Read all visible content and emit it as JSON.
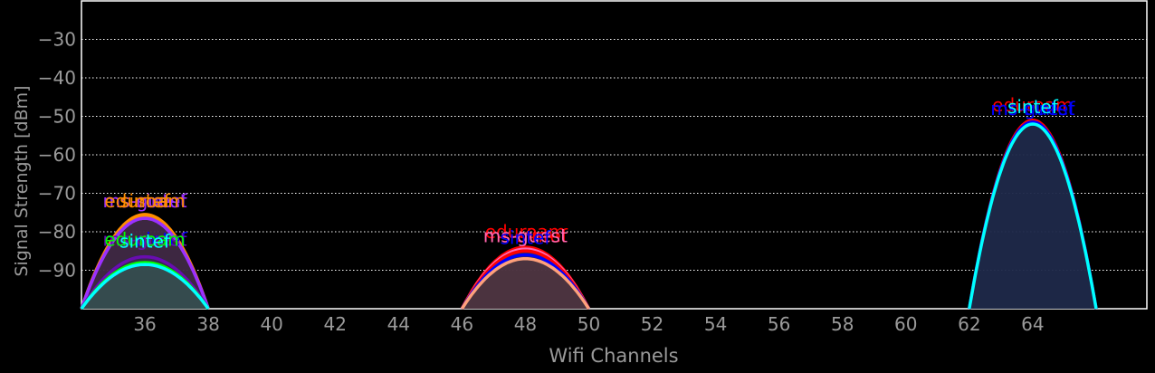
{
  "chart_data": {
    "type": "area",
    "title": "",
    "xlabel": "Wifi Channels",
    "ylabel": "Signal Strength [dBm]",
    "xlim": [
      34,
      67.6
    ],
    "ylim": [
      -100,
      -20
    ],
    "x_ticks": [
      36,
      38,
      40,
      42,
      44,
      46,
      48,
      50,
      52,
      54,
      56,
      58,
      60,
      62,
      64
    ],
    "x_tick_labels": [
      "36",
      "38",
      "40",
      "42",
      "44",
      "46",
      "48",
      "50",
      "52",
      "54",
      "56",
      "58",
      "60",
      "62",
      "64"
    ],
    "y_ticks": [
      -30,
      -40,
      -50,
      -60,
      -70,
      -80,
      -90
    ],
    "y_tick_labels": [
      "−30",
      "−40",
      "−50",
      "−60",
      "−70",
      "−80",
      "−90"
    ],
    "grid": true,
    "legend": "none",
    "background": "#000000",
    "networks": [
      {
        "ssid": "eduroam",
        "channel": 36,
        "x_start": 34,
        "x_end": 38,
        "peak": -76,
        "color": "#ff8c00",
        "fill": "#5a2a2a"
      },
      {
        "ssid": "sintef",
        "channel": 36,
        "x_start": 34,
        "x_end": 38,
        "peak": -75.5,
        "color": "#ff8c00",
        "fill": "#5a2a2a"
      },
      {
        "ssid": "ms-sintef",
        "channel": 36,
        "x_start": 34,
        "x_end": 38,
        "peak": -76.5,
        "color": "#9b30ff",
        "fill": "#3a2a4a"
      },
      {
        "ssid": "ms-guest",
        "channel": 36,
        "x_start": 34,
        "x_end": 38,
        "peak": -76.5,
        "color": "#9b30ff",
        "fill": "#3a2a4a"
      },
      {
        "ssid": "ms-sintef",
        "channel": 36,
        "x_start": 34,
        "x_end": 38,
        "peak": -86.5,
        "color": "#0000ff",
        "fill": "#2a2a5a"
      },
      {
        "ssid": "ms-guest",
        "channel": 36,
        "x_start": 34,
        "x_end": 38,
        "peak": -86.5,
        "color": "#6a0dad",
        "fill": "#3a2a4a"
      },
      {
        "ssid": "eduroam",
        "channel": 36,
        "x_start": 34,
        "x_end": 38,
        "peak": -88,
        "color": "#00ff00",
        "fill": "#2a4a3a"
      },
      {
        "ssid": "sintef",
        "channel": 36,
        "x_start": 34,
        "x_end": 38,
        "peak": -88.5,
        "color": "#00ffff",
        "fill": "#3a5a5a"
      },
      {
        "ssid": "eduroam",
        "channel": 48,
        "x_start": 46,
        "x_end": 50,
        "peak": -84,
        "color": "#ff0000",
        "fill": "#5a2a2a"
      },
      {
        "ssid": "ms-sintef",
        "channel": 48,
        "x_start": 46,
        "x_end": 50,
        "peak": -84.5,
        "color": "#ff69b4",
        "fill": "#5a3a4a"
      },
      {
        "ssid": "ms-guest",
        "channel": 48,
        "x_start": 46,
        "x_end": 50,
        "peak": -85,
        "color": "#ff0000",
        "fill": "#5a2a2a"
      },
      {
        "ssid": "sintef",
        "channel": 48,
        "x_start": 46,
        "x_end": 50,
        "peak": -86,
        "color": "#0000ff",
        "fill": "#2a2a5a"
      },
      {
        "ssid": "sintef",
        "channel": 48,
        "x_start": 46,
        "x_end": 50,
        "peak": -87,
        "color": "#ffa07a",
        "fill": "#5a3a3a"
      },
      {
        "ssid": "eduroam",
        "channel": 64,
        "x_start": 62,
        "x_end": 66,
        "peak": -51,
        "color": "#ff0000",
        "fill": "#3a2a3a"
      },
      {
        "ssid": "ms-sintef",
        "channel": 64,
        "x_start": 62,
        "x_end": 66,
        "peak": -51.5,
        "color": "#0000ff",
        "fill": "#1e2a4a"
      },
      {
        "ssid": "ms-guest",
        "channel": 64,
        "x_start": 62,
        "x_end": 66,
        "peak": -51.5,
        "color": "#0000ff",
        "fill": "#1e2a4a"
      },
      {
        "ssid": "sintef",
        "channel": 64,
        "x_start": 62,
        "x_end": 66,
        "peak": -52,
        "color": "#00ffff",
        "fill": "#1e2a4a"
      }
    ],
    "labels": [
      {
        "text": "ms-sintef",
        "x": 36,
        "y": -72,
        "color": "#9b30ff"
      },
      {
        "text": "ms-guest",
        "x": 36,
        "y": -72,
        "color": "#9b30ff"
      },
      {
        "text": "eduroam",
        "x": 36,
        "y": -72,
        "color": "#ff8c00"
      },
      {
        "text": "sintef",
        "x": 36,
        "y": -72,
        "color": "#ff8c00"
      },
      {
        "text": "ms-sintef",
        "x": 36,
        "y": -82,
        "color": "#0000ff"
      },
      {
        "text": "ms-guest",
        "x": 36,
        "y": -82,
        "color": "#6a0dad"
      },
      {
        "text": "eduroam",
        "x": 36,
        "y": -82,
        "color": "#00ff00"
      },
      {
        "text": "sintef",
        "x": 36,
        "y": -82.5,
        "color": "#00ffff"
      },
      {
        "text": "eduroam",
        "x": 48,
        "y": -80,
        "color": "#ff0000"
      },
      {
        "text": "ms-sintef",
        "x": 48,
        "y": -81,
        "color": "#ff0000"
      },
      {
        "text": "ms-guest",
        "x": 48,
        "y": -81,
        "color": "#ff69b4"
      },
      {
        "text": "sintef",
        "x": 48,
        "y": -81.5,
        "color": "#0000ff"
      },
      {
        "text": "eduroam",
        "x": 64,
        "y": -47,
        "color": "#ff0000"
      },
      {
        "text": "ms-sintef",
        "x": 64,
        "y": -48,
        "color": "#0000ff"
      },
      {
        "text": "ms-guest",
        "x": 64,
        "y": -48,
        "color": "#0000ff"
      },
      {
        "text": "sintef",
        "x": 64,
        "y": -47.5,
        "color": "#00ffff"
      }
    ]
  }
}
